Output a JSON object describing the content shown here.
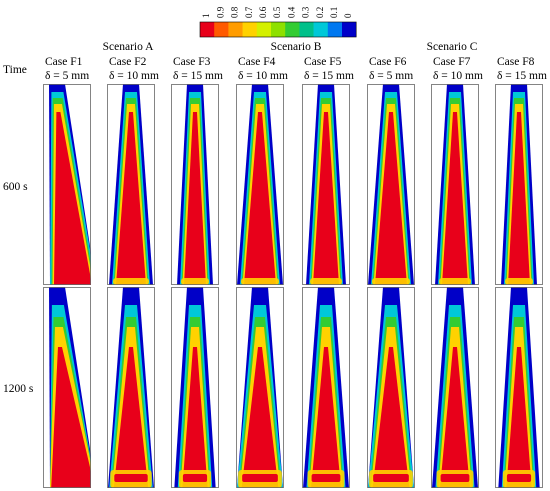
{
  "colorbar": {
    "labels": [
      "1",
      "0.9",
      "0.8",
      "0.7",
      "0.6",
      "0.5",
      "0.4",
      "0.3",
      "0.2",
      "0.1",
      "0"
    ],
    "colors": [
      "#e8001a",
      "#ff5a00",
      "#ff9c00",
      "#ffd200",
      "#d4f000",
      "#8ee000",
      "#33cc33",
      "#00c08a",
      "#00c8d8",
      "#0078f0",
      "#0000c8"
    ]
  },
  "scenarios": [
    {
      "label": "Scenario A"
    },
    {
      "label": "Scenario B"
    },
    {
      "label": "Scenario C"
    }
  ],
  "time_header": "Time",
  "cases": [
    {
      "name": "Case F1",
      "delta": "δ = 5 mm"
    },
    {
      "name": "Case F2",
      "delta": "δ = 10 mm"
    },
    {
      "name": "Case F3",
      "delta": "δ = 15 mm"
    },
    {
      "name": "Case F4",
      "delta": "δ = 10 mm"
    },
    {
      "name": "Case F5",
      "delta": "δ = 15 mm"
    },
    {
      "name": "Case F6",
      "delta": "δ = 5 mm"
    },
    {
      "name": "Case F7",
      "delta": "δ = 10 mm"
    },
    {
      "name": "Case F8",
      "delta": "δ = 15 mm"
    }
  ],
  "rows": [
    {
      "label": "600 s"
    },
    {
      "label": "1200 s"
    }
  ]
}
